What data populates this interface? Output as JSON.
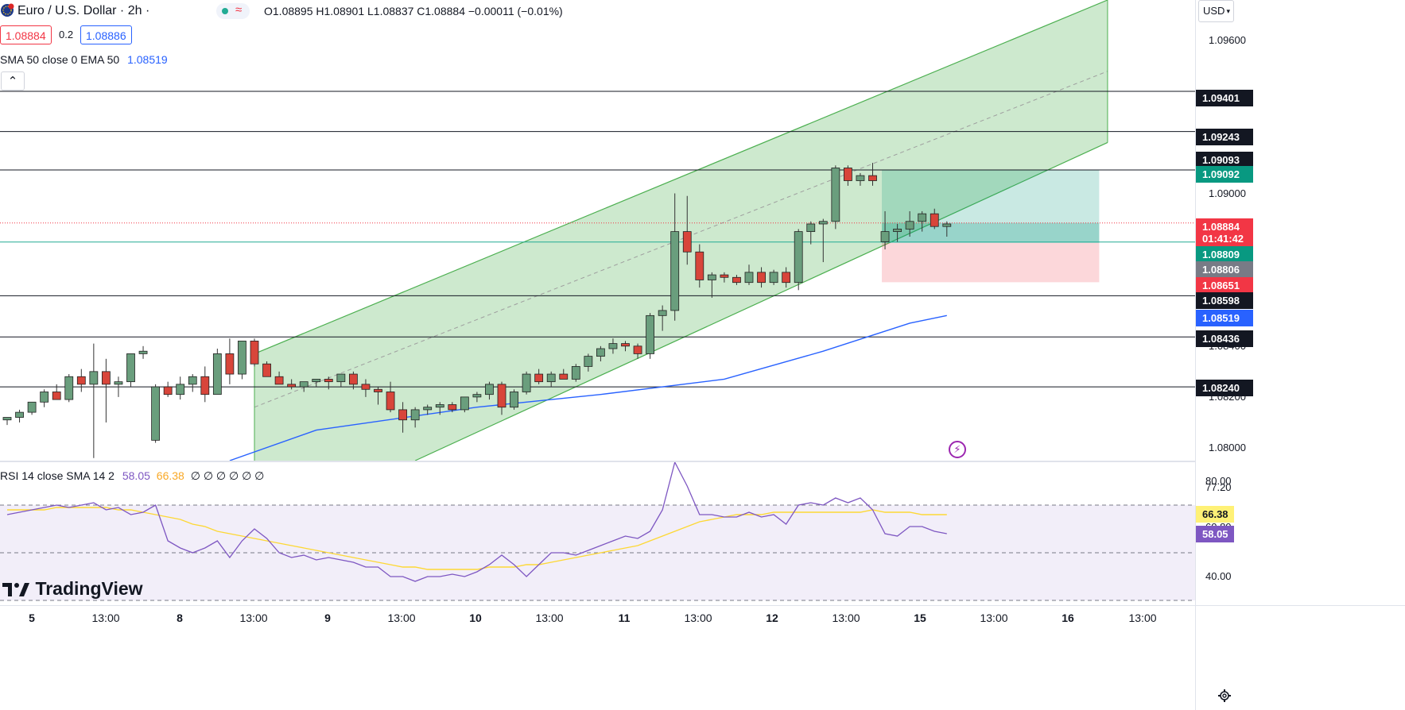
{
  "header": {
    "symbol": "Euro / U.S. Dollar · 2h ·",
    "ohlc_text": "O1.08895 H1.08901 L1.08837 C1.08884 −0.00011 (−0.01%)",
    "bid": "1.08884",
    "spread": "0.2",
    "ask": "1.08886",
    "indicator_name": "SMA 50 close 0 EMA 50",
    "indicator_value": "1.08519",
    "collapse_glyph": "⌃",
    "live_glyph": "≈"
  },
  "currency": "USD",
  "price_axis": {
    "ticks": [
      "1.09600",
      "1.09200",
      "1.09000",
      "1.08400",
      "1.08200",
      "1.08000"
    ],
    "tags": [
      {
        "text": "1.09401",
        "bg": "#131722"
      },
      {
        "text": "1.09243",
        "bg": "#131722"
      },
      {
        "text": "1.09093",
        "bg": "#131722"
      },
      {
        "text": "1.09092",
        "bg": "#089981"
      },
      {
        "text": "1.08884",
        "bg": "#f23645"
      },
      {
        "text": "01:41:42",
        "bg": "#f23645"
      },
      {
        "text": "1.08809",
        "bg": "#089981"
      },
      {
        "text": "1.08806",
        "bg": "#787b86"
      },
      {
        "text": "1.08651",
        "bg": "#f23645"
      },
      {
        "text": "1.08598",
        "bg": "#131722"
      },
      {
        "text": "1.08519",
        "bg": "#2962ff"
      },
      {
        "text": "1.08436",
        "bg": "#131722"
      },
      {
        "text": "1.08240",
        "bg": "#131722"
      }
    ]
  },
  "rsi": {
    "label": "RSI 14 close SMA 14 2",
    "value1": "58.05",
    "value2": "66.38",
    "extras": "∅ ∅ ∅ ∅ ∅ ∅",
    "axis": [
      "80.00",
      "77.20",
      "60.80",
      "40.00"
    ],
    "tags": [
      {
        "text": "66.38",
        "bg": "#fff176",
        "fg": "#131722"
      },
      {
        "text": "58.05",
        "bg": "#7e57c2",
        "fg": "#ffffff"
      }
    ]
  },
  "time_axis": [
    "5",
    "13:00",
    "8",
    "13:00",
    "9",
    "13:00",
    "10",
    "13:00",
    "11",
    "13:00",
    "12",
    "13:00",
    "15",
    "13:00",
    "16",
    "13:00"
  ],
  "logo_text": "TradingView",
  "colors": {
    "up": "#6a9e7d",
    "down": "#d8453a",
    "channel": "#4caf50",
    "ema": "#2962ff",
    "rsi": "#7e57c2",
    "rsi_ma": "#fdd835"
  },
  "chart_data": {
    "type": "candlestick",
    "symbol": "Euro / U.S. Dollar",
    "interval": "2h",
    "ylim": [
      1.0795,
      1.0976
    ],
    "candles": [
      [
        1.0811,
        1.0812,
        1.0809,
        1.0812
      ],
      [
        1.0812,
        1.0815,
        1.081,
        1.0814
      ],
      [
        1.0814,
        1.0818,
        1.0813,
        1.0818
      ],
      [
        1.0818,
        1.0823,
        1.0816,
        1.0822
      ],
      [
        1.0822,
        1.0825,
        1.082,
        1.0819
      ],
      [
        1.0819,
        1.0829,
        1.0818,
        1.0828
      ],
      [
        1.0828,
        1.0831,
        1.0822,
        1.0825
      ],
      [
        1.0825,
        1.0841,
        1.0796,
        1.083
      ],
      [
        1.083,
        1.0835,
        1.081,
        1.0825
      ],
      [
        1.0825,
        1.0828,
        1.082,
        1.0826
      ],
      [
        1.0826,
        1.0837,
        1.0824,
        1.0837
      ],
      [
        1.0837,
        1.084,
        1.0835,
        1.0838
      ],
      [
        1.0803,
        1.0825,
        1.0802,
        1.0824
      ],
      [
        1.0824,
        1.0826,
        1.082,
        1.0821
      ],
      [
        1.0821,
        1.0828,
        1.0819,
        1.0825
      ],
      [
        1.0825,
        1.0829,
        1.0822,
        1.0828
      ],
      [
        1.0828,
        1.0832,
        1.0818,
        1.0821
      ],
      [
        1.0821,
        1.0839,
        1.0822,
        1.0837
      ],
      [
        1.0837,
        1.0843,
        1.0825,
        1.0829
      ],
      [
        1.0829,
        1.0842,
        1.0827,
        1.0842
      ],
      [
        1.0842,
        1.0843,
        1.0832,
        1.0833
      ],
      [
        1.0833,
        1.0834,
        1.0828,
        1.0828
      ],
      [
        1.0828,
        1.083,
        1.0825,
        1.0825
      ],
      [
        1.0825,
        1.0827,
        1.0823,
        1.0824
      ],
      [
        1.0824,
        1.0826,
        1.0822,
        1.0826
      ],
      [
        1.0826,
        1.0827,
        1.0824,
        1.0827
      ],
      [
        1.0827,
        1.0828,
        1.0823,
        1.0826
      ],
      [
        1.0826,
        1.0829,
        1.0824,
        1.0829
      ],
      [
        1.0829,
        1.083,
        1.0823,
        1.0825
      ],
      [
        1.0825,
        1.0827,
        1.082,
        1.0823
      ],
      [
        1.0823,
        1.0824,
        1.0817,
        1.0822
      ],
      [
        1.0822,
        1.0826,
        1.0814,
        1.0815
      ],
      [
        1.0815,
        1.0818,
        1.0806,
        1.0811
      ],
      [
        1.0811,
        1.0816,
        1.0808,
        1.0815
      ],
      [
        1.0815,
        1.0817,
        1.0813,
        1.0816
      ],
      [
        1.0816,
        1.0818,
        1.0813,
        1.0817
      ],
      [
        1.0817,
        1.0818,
        1.0814,
        1.0815
      ],
      [
        1.0815,
        1.082,
        1.0814,
        1.082
      ],
      [
        1.082,
        1.0822,
        1.0818,
        1.0821
      ],
      [
        1.0821,
        1.0826,
        1.0819,
        1.0825
      ],
      [
        1.0825,
        1.0826,
        1.0813,
        1.0816
      ],
      [
        1.0816,
        1.0823,
        1.0815,
        1.0822
      ],
      [
        1.0822,
        1.083,
        1.0821,
        1.0829
      ],
      [
        1.0829,
        1.0831,
        1.0825,
        1.0826
      ],
      [
        1.0826,
        1.083,
        1.0824,
        1.0829
      ],
      [
        1.0829,
        1.0831,
        1.0827,
        1.0827
      ],
      [
        1.0827,
        1.0833,
        1.0826,
        1.0832
      ],
      [
        1.0832,
        1.0837,
        1.083,
        1.0836
      ],
      [
        1.0836,
        1.084,
        1.0834,
        1.0839
      ],
      [
        1.0839,
        1.0843,
        1.0837,
        1.0841
      ],
      [
        1.0841,
        1.0842,
        1.0838,
        1.084
      ],
      [
        1.084,
        1.0841,
        1.0835,
        1.0837
      ],
      [
        1.0837,
        1.0853,
        1.0835,
        1.0852
      ],
      [
        1.0852,
        1.0856,
        1.0846,
        1.0854
      ],
      [
        1.0854,
        1.09,
        1.085,
        1.0885
      ],
      [
        1.0885,
        1.0899,
        1.0872,
        1.0877
      ],
      [
        1.0877,
        1.088,
        1.0863,
        1.0866
      ],
      [
        1.0866,
        1.0869,
        1.0859,
        1.0868
      ],
      [
        1.0868,
        1.0869,
        1.0865,
        1.0867
      ],
      [
        1.0867,
        1.0868,
        1.0864,
        1.0865
      ],
      [
        1.0865,
        1.0872,
        1.0864,
        1.0869
      ],
      [
        1.0869,
        1.0871,
        1.0863,
        1.0865
      ],
      [
        1.0865,
        1.087,
        1.0864,
        1.0869
      ],
      [
        1.0869,
        1.0871,
        1.0863,
        1.0865
      ],
      [
        1.0865,
        1.0886,
        1.0862,
        1.0885
      ],
      [
        1.0885,
        1.0889,
        1.088,
        1.0888
      ],
      [
        1.0888,
        1.089,
        1.0873,
        1.0889
      ],
      [
        1.0889,
        1.0911,
        1.0886,
        1.091
      ],
      [
        1.091,
        1.0911,
        1.0903,
        1.0905
      ],
      [
        1.0905,
        1.0908,
        1.0903,
        1.0907
      ],
      [
        1.0907,
        1.0912,
        1.0903,
        1.0905
      ],
      [
        1.0881,
        1.0893,
        1.0878,
        1.0885
      ],
      [
        1.0885,
        1.0888,
        1.0881,
        1.0886
      ],
      [
        1.0886,
        1.0893,
        1.0883,
        1.0889
      ],
      [
        1.0889,
        1.0893,
        1.0885,
        1.0892
      ],
      [
        1.0892,
        1.0894,
        1.0886,
        1.0887
      ],
      [
        1.0887,
        1.0889,
        1.0883,
        1.0888
      ]
    ],
    "ema50": [
      [
        18,
        1.0795
      ],
      [
        25,
        1.0807
      ],
      [
        38,
        1.0816
      ],
      [
        48,
        1.0821
      ],
      [
        58,
        1.0827
      ],
      [
        66,
        1.0838
      ],
      [
        73,
        1.0849
      ],
      [
        76,
        1.0852
      ]
    ],
    "horizontal_levels": [
      1.09401,
      1.09243,
      1.09092,
      1.08809,
      1.08598,
      1.08436,
      1.0824
    ],
    "channel": {
      "upper": [
        [
          20,
          1.0837
        ],
        [
          89,
          1.0976
        ]
      ],
      "lower": [
        [
          33,
          1.0795
        ],
        [
          89,
          1.092
        ]
      ],
      "mid": [
        [
          20,
          1.0816
        ],
        [
          89,
          1.0948
        ]
      ]
    },
    "position": {
      "entry": 1.08806,
      "target": 1.09092,
      "stop": 1.08651,
      "current": 1.08884
    },
    "rsi": {
      "ylim": [
        28,
        88
      ],
      "levels": [
        70,
        50,
        30
      ],
      "rsi14": [
        66,
        67,
        68,
        69,
        70,
        69,
        70,
        71,
        68,
        69,
        66,
        67,
        70,
        55,
        52,
        50,
        52,
        55,
        48,
        55,
        60,
        56,
        50,
        48,
        49,
        47,
        48,
        47,
        46,
        44,
        44,
        40,
        40,
        38,
        40,
        40,
        41,
        40,
        42,
        45,
        49,
        45,
        40,
        45,
        50,
        50,
        49,
        51,
        53,
        55,
        57,
        56,
        59,
        68,
        88,
        78,
        66,
        66,
        65,
        65,
        67,
        65,
        66,
        62,
        70,
        71,
        70,
        73,
        71,
        73,
        68,
        58,
        57,
        61,
        61,
        59,
        58
      ],
      "sma14": [
        68,
        68,
        68,
        68,
        69,
        69,
        69,
        69,
        69,
        68,
        68,
        67,
        66,
        65,
        64,
        62,
        61,
        59,
        58,
        57,
        56,
        55,
        54,
        53,
        52,
        51,
        50,
        49,
        48,
        47,
        46,
        45,
        44,
        44,
        43,
        43,
        43,
        43,
        43,
        44,
        44,
        44,
        45,
        45,
        46,
        47,
        48,
        49,
        50,
        51,
        52,
        53,
        55,
        57,
        59,
        61,
        63,
        64,
        65,
        66,
        66,
        66,
        67,
        67,
        67,
        67,
        67,
        67,
        67,
        67,
        68,
        67,
        67,
        67,
        66,
        66,
        66
      ]
    }
  }
}
